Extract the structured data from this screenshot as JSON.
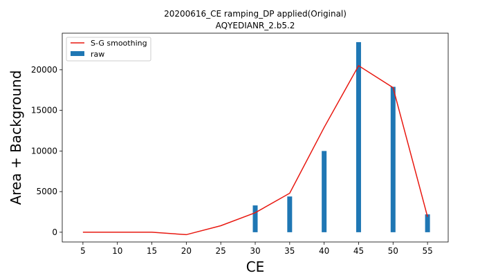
{
  "chart_data": {
    "type": "bar",
    "title": [
      "20200616_CE ramping_DP applied(Original)",
      "AQYEDIANR_2.b5.2"
    ],
    "xlabel": "CE",
    "ylabel": "Area + Background",
    "xlim": [
      2,
      58
    ],
    "ylim": [
      -1200,
      24500
    ],
    "xticks": [
      5,
      10,
      15,
      20,
      25,
      30,
      35,
      40,
      45,
      50,
      55
    ],
    "yticks": [
      0,
      5000,
      10000,
      15000,
      20000
    ],
    "grid": false,
    "legend_position": "upper-left",
    "series": [
      {
        "name": "S-G smoothing",
        "type": "line",
        "color": "#e8170f",
        "x": [
          5,
          10,
          15,
          20,
          25,
          30,
          35,
          40,
          45,
          50,
          55
        ],
        "values": [
          0,
          0,
          0,
          -300,
          800,
          2400,
          4800,
          12900,
          20500,
          17800,
          1900
        ]
      },
      {
        "name": "raw",
        "type": "bar",
        "color": "#1f77b4",
        "x": [
          5,
          10,
          15,
          20,
          25,
          30,
          35,
          40,
          45,
          50,
          55
        ],
        "values": [
          0,
          0,
          0,
          0,
          0,
          3300,
          4400,
          10000,
          23400,
          17900,
          2200
        ]
      }
    ]
  }
}
